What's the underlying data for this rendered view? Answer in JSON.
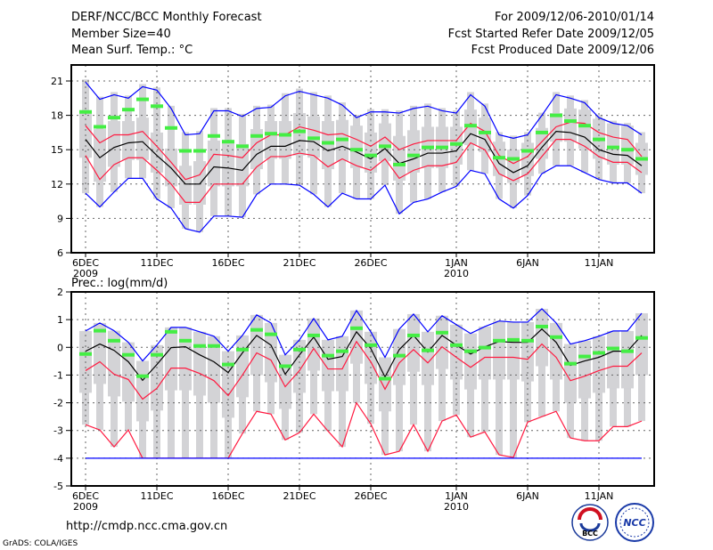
{
  "header": {
    "title": "DERF/NCC/BCC Monthly Forecast",
    "member_size": "Member Size=40",
    "variable": "Mean Surf. Temp.: °C",
    "period": "For 2009/12/06-2010/01/14",
    "start_date": "Fcst Started Refer Date 2009/12/05",
    "produced_date": "Fcst Produced Date 2009/12/06"
  },
  "footer": {
    "url": "http://cmdp.ncc.cma.gov.cn",
    "credit": "GrADS: COLA/IGES",
    "logo_bcc": "BCC",
    "logo_ncc": "NCC"
  },
  "colors": {
    "max_min": "#0000ff",
    "quantile": "#ff1a40",
    "mean": "#000000",
    "median": "#44ee44",
    "spread": "#d3d3d6"
  },
  "chart_data": [
    {
      "type": "line",
      "title": "Mean Surf. Temp.: °C",
      "ylabel": "°C",
      "ylim": [
        6,
        22.4
      ],
      "yticks": [
        "6",
        "9",
        "12",
        "15",
        "18",
        "21"
      ],
      "ytick_values": [
        6,
        9,
        12,
        15,
        18,
        21
      ],
      "xticks": [
        {
          "day": 0,
          "label": "6DEC",
          "year": "2009"
        },
        {
          "day": 5,
          "label": "11DEC"
        },
        {
          "day": 10,
          "label": "16DEC"
        },
        {
          "day": 15,
          "label": "21DEC"
        },
        {
          "day": 20,
          "label": "26DEC"
        },
        {
          "day": 26,
          "label": "1JAN",
          "year": "2010"
        },
        {
          "day": 31,
          "label": "6JAN"
        },
        {
          "day": 36,
          "label": "11JAN"
        }
      ],
      "grid": true,
      "series": [
        {
          "name": "max",
          "color": "#0000ff",
          "values": [
            20.9,
            19.4,
            19.8,
            19.5,
            20.5,
            20.2,
            18.6,
            16.3,
            16.4,
            18.4,
            18.4,
            17.9,
            18.6,
            18.7,
            19.7,
            20.1,
            19.8,
            19.5,
            18.9,
            17.8,
            18.3,
            18.3,
            18.2,
            18.6,
            18.8,
            18.4,
            18.2,
            19.8,
            18.8,
            16.3,
            16.0,
            16.3,
            18.0,
            19.8,
            19.5,
            19.1,
            17.8,
            17.3,
            17.1,
            16.3
          ]
        },
        {
          "name": "upper",
          "color": "#ff1a40",
          "values": [
            17.1,
            15.6,
            16.3,
            16.3,
            16.6,
            15.3,
            13.9,
            12.4,
            12.8,
            14.6,
            14.5,
            14.3,
            15.6,
            16.3,
            16.3,
            17.0,
            16.7,
            16.3,
            16.4,
            15.9,
            15.3,
            16.1,
            15.0,
            15.5,
            15.8,
            15.8,
            15.8,
            17.3,
            16.6,
            14.5,
            13.8,
            14.4,
            15.7,
            17.0,
            17.4,
            17.3,
            16.5,
            16.1,
            15.9,
            14.4
          ]
        },
        {
          "name": "mean",
          "color": "#000000",
          "values": [
            15.9,
            14.3,
            15.2,
            15.6,
            15.7,
            14.5,
            13.4,
            12.0,
            12.0,
            13.5,
            13.4,
            13.2,
            14.6,
            15.3,
            15.3,
            15.8,
            15.7,
            14.9,
            15.3,
            14.8,
            14.2,
            15.1,
            13.8,
            14.2,
            14.7,
            14.7,
            14.9,
            16.4,
            15.9,
            13.8,
            13.0,
            13.6,
            15.2,
            16.6,
            16.5,
            16.1,
            15.0,
            14.6,
            14.5,
            13.6
          ]
        },
        {
          "name": "lower",
          "color": "#ff1a40",
          "values": [
            14.5,
            12.4,
            13.7,
            14.3,
            14.3,
            13.2,
            12.0,
            10.4,
            10.4,
            12.0,
            12.0,
            12.0,
            13.5,
            14.4,
            14.4,
            14.7,
            14.5,
            13.5,
            14.2,
            13.6,
            13.2,
            14.2,
            12.5,
            13.2,
            13.6,
            13.6,
            13.9,
            15.6,
            15.0,
            12.9,
            12.3,
            12.9,
            14.4,
            15.9,
            15.9,
            15.3,
            14.4,
            13.9,
            13.9,
            13.0
          ]
        },
        {
          "name": "min",
          "color": "#0000ff",
          "values": [
            11.2,
            10.0,
            11.3,
            12.5,
            12.5,
            10.7,
            9.9,
            8.1,
            7.8,
            9.2,
            9.2,
            9.1,
            11.1,
            12.0,
            12.0,
            11.9,
            11.1,
            10.0,
            11.2,
            10.7,
            10.7,
            11.9,
            9.4,
            10.4,
            10.7,
            11.3,
            11.8,
            13.2,
            12.9,
            10.7,
            9.9,
            11.0,
            12.9,
            13.6,
            13.6,
            13.0,
            12.4,
            12.1,
            12.1,
            11.2
          ]
        },
        {
          "name": "median",
          "color": "#44ee44",
          "values": [
            18.3,
            17.0,
            17.8,
            18.5,
            19.4,
            18.8,
            16.9,
            14.9,
            14.9,
            16.2,
            15.7,
            15.3,
            16.2,
            16.4,
            16.3,
            16.6,
            16.0,
            15.6,
            15.9,
            15.0,
            14.5,
            15.3,
            13.7,
            14.5,
            15.2,
            15.2,
            15.5,
            17.1,
            16.5,
            14.3,
            14.2,
            14.9,
            16.5,
            18.0,
            17.5,
            17.1,
            15.9,
            15.2,
            15.0,
            14.2
          ]
        }
      ]
    },
    {
      "type": "line",
      "title": "Prec.: log(mm/d)",
      "ylabel": "log(mm/d)",
      "ylim": [
        -5,
        2
      ],
      "yticks": [
        "-5",
        "-4",
        "-3",
        "-2",
        "-1",
        "0",
        "1",
        "2"
      ],
      "ytick_values": [
        -5,
        -4,
        -3,
        -2,
        -1,
        0,
        1,
        2
      ],
      "xticks": [
        {
          "day": 0,
          "label": "6DEC",
          "year": "2009"
        },
        {
          "day": 5,
          "label": "11DEC"
        },
        {
          "day": 10,
          "label": "16DEC"
        },
        {
          "day": 15,
          "label": "21DEC"
        },
        {
          "day": 20,
          "label": "26DEC"
        },
        {
          "day": 26,
          "label": "1JAN",
          "year": "2010"
        },
        {
          "day": 31,
          "label": "6JAN"
        },
        {
          "day": 36,
          "label": "11JAN"
        }
      ],
      "grid": true,
      "series": [
        {
          "name": "max",
          "color": "#0000ff",
          "values": [
            0.59,
            0.88,
            0.6,
            0.18,
            -0.49,
            0.08,
            0.72,
            0.72,
            0.56,
            0.4,
            -0.14,
            0.43,
            1.17,
            0.88,
            -0.27,
            0.27,
            1.04,
            0.27,
            0.4,
            1.33,
            0.56,
            -0.36,
            0.66,
            1.2,
            0.56,
            1.14,
            0.82,
            0.5,
            0.75,
            0.95,
            0.91,
            0.91,
            1.39,
            0.88,
            0.12,
            0.24,
            0.4,
            0.59,
            0.59,
            1.23
          ]
        },
        {
          "name": "mean",
          "color": "#000000",
          "values": [
            -0.14,
            0.12,
            -0.11,
            -0.52,
            -1.19,
            -0.62,
            -0.01,
            0.02,
            -0.27,
            -0.52,
            -0.91,
            -0.2,
            0.43,
            0.08,
            -0.97,
            -0.27,
            0.37,
            -0.43,
            -0.33,
            0.56,
            -0.04,
            -1.07,
            -0.08,
            0.43,
            -0.17,
            0.43,
            0.08,
            -0.24,
            0.02,
            0.21,
            0.18,
            0.18,
            0.66,
            0.18,
            -0.65,
            -0.49,
            -0.36,
            -0.14,
            -0.14,
            0.43
          ]
        },
        {
          "name": "upper",
          "color": "#ff1a40",
          "values": [
            -0.84,
            -0.52,
            -0.97,
            -1.16,
            -1.87,
            -1.48,
            -0.75,
            -0.75,
            -0.94,
            -1.2,
            -1.74,
            -1.0,
            -0.2,
            -0.46,
            -1.42,
            -0.84,
            -0.04,
            -0.78,
            -0.78,
            0.21,
            -0.52,
            -1.51,
            -0.56,
            -0.08,
            -0.56,
            0.02,
            -0.36,
            -0.72,
            -0.36,
            -0.36,
            -0.36,
            -0.43,
            0.12,
            -0.36,
            -1.2,
            -1.04,
            -0.84,
            -0.68,
            -0.68,
            -0.2
          ]
        },
        {
          "name": "lower",
          "color": "#ff1a40",
          "values": [
            -2.79,
            -2.98,
            -3.59,
            -2.98,
            -4,
            -4,
            -4,
            -4,
            -4,
            -4,
            -4,
            -3.11,
            -2.31,
            -2.41,
            -3.34,
            -3.08,
            -2.41,
            -3.02,
            -3.59,
            -2.0,
            -2.76,
            -3.88,
            -3.75,
            -2.79,
            -3.75,
            -2.66,
            -2.44,
            -3.24,
            -3.05,
            -3.88,
            -3.97,
            -2.7,
            -2.5,
            -2.31,
            -3.27,
            -3.37,
            -3.37,
            -2.86,
            -2.86,
            -2.66
          ]
        },
        {
          "name": "min",
          "color": "#0000ff",
          "values": [
            -4,
            -4,
            -4,
            -4,
            -4,
            -4,
            -4,
            -4,
            -4,
            -4,
            -4,
            -4,
            -4,
            -4,
            -4,
            -4,
            -4,
            -4,
            -4,
            -4,
            -4,
            -4,
            -4,
            -4,
            -4,
            -4,
            -4,
            -4,
            -4,
            -4,
            -4,
            -4,
            -4,
            -4,
            -4,
            -4,
            -4,
            -4,
            -4,
            -4
          ]
        },
        {
          "name": "median",
          "color": "#44ee44",
          "values": [
            -0.24,
            0.6,
            0.24,
            -0.27,
            -1.04,
            -0.27,
            0.56,
            0.24,
            0.05,
            0.05,
            -0.62,
            -0.08,
            0.63,
            0.47,
            -0.68,
            -0.08,
            0.43,
            -0.3,
            -0.14,
            0.69,
            0.08,
            -1.13,
            -0.3,
            0.43,
            -0.11,
            0.53,
            0.08,
            -0.14,
            -0.01,
            0.24,
            0.27,
            0.24,
            0.75,
            0.37,
            -0.59,
            -0.33,
            -0.2,
            -0.04,
            -0.14,
            0.34
          ]
        }
      ]
    }
  ]
}
